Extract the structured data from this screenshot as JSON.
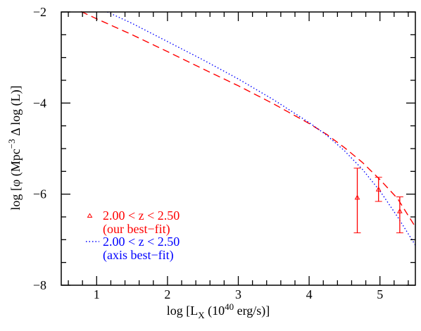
{
  "chart_data": {
    "type": "line",
    "title": "",
    "xlabel": "log [L",
    "xlabel_sub": "X",
    "xlabel_tail": " (10",
    "xlabel_sup": "40",
    "xlabel_end": " erg/s)]",
    "ylabel": "log [φ (Mpc",
    "ylabel_sup": "−3",
    "ylabel_end": " Δ log (L)]",
    "xlim": [
      0.5,
      5.5
    ],
    "ylim": [
      -8,
      -2
    ],
    "xticks": [
      1,
      2,
      3,
      4,
      5
    ],
    "xtick_labels": [
      "1",
      "2",
      "3",
      "4",
      "5"
    ],
    "yticks": [
      -8,
      -6,
      -4,
      -2
    ],
    "ytick_labels": [
      "−8",
      "−6",
      "−4",
      "−2"
    ],
    "grid": false,
    "legend_position": "lower-left",
    "series": [
      {
        "name": "2.00 < z < 2.50 (our best−fit)",
        "style": "dashed",
        "color": "#ff0000",
        "x": [
          0.78,
          1.0,
          1.5,
          2.0,
          2.5,
          3.0,
          3.5,
          4.0,
          4.25,
          4.5,
          4.75,
          5.0,
          5.25,
          5.5
        ],
        "y": [
          -1.99,
          -2.15,
          -2.5,
          -2.87,
          -3.25,
          -3.62,
          -4.02,
          -4.45,
          -4.69,
          -4.98,
          -5.3,
          -5.68,
          -6.1,
          -6.72
        ]
      },
      {
        "name": "2.00 < z < 2.50 (axis best−fit)",
        "style": "dotted",
        "color": "#0000ff",
        "x": [
          1.15,
          1.5,
          2.0,
          2.5,
          3.0,
          3.5,
          4.0,
          4.25,
          4.5,
          4.75,
          5.0,
          5.25,
          5.5
        ],
        "y": [
          -2.0,
          -2.25,
          -2.65,
          -3.05,
          -3.47,
          -3.93,
          -4.43,
          -4.71,
          -5.05,
          -5.45,
          -5.93,
          -6.5,
          -7.12
        ]
      },
      {
        "name": "2.00 < z < 2.50",
        "style": "points",
        "marker": "triangle",
        "color": "#ff0000",
        "x": [
          4.68,
          4.98,
          5.28
        ],
        "y": [
          -6.08,
          -5.9,
          -6.38
        ],
        "y_low": [
          -6.85,
          -6.16,
          -6.85
        ],
        "y_high": [
          -5.43,
          -5.63,
          -6.06
        ]
      }
    ],
    "legend": {
      "row1_label": "2.00 < z <  2.50",
      "row1_note": "(our best−fit)",
      "row2_label": "2.00 < z <  2.50",
      "row2_note": "(axis best−fit)"
    }
  }
}
